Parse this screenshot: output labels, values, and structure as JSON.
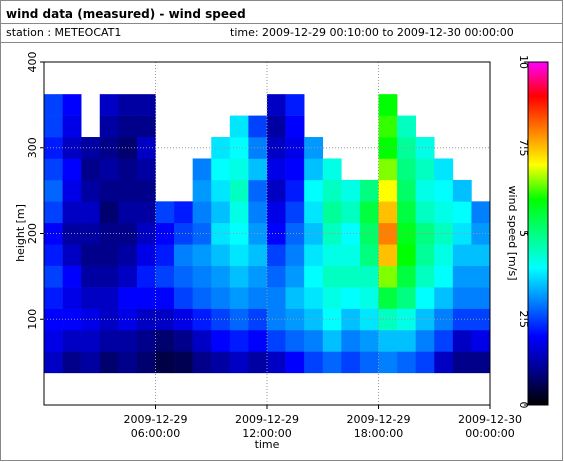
{
  "chart_data": {
    "type": "heatmap",
    "title": "wind data (measured) - wind speed",
    "station": "station : METEOCAT1",
    "period": "time: 2009-12-29 00:10:00 to 2009-12-30 00:00:00",
    "x_label": "time",
    "y_label": "height [m]",
    "colorbar_label": "wind speed [m/s]",
    "x": [
      0.5,
      1.5,
      2.5,
      3.5,
      4.5,
      5.5,
      6.5,
      7.5,
      8.5,
      9.5,
      10.5,
      11.5,
      12.5,
      13.5,
      14.5,
      15.5,
      16.5,
      17.5,
      18.5,
      19.5,
      20.5,
      21.5,
      22.5,
      23.5
    ],
    "y": [
      50,
      75,
      100,
      125,
      150,
      175,
      200,
      225,
      250,
      275,
      300,
      325,
      350
    ],
    "z": [
      [
        1.5,
        1.8,
        2,
        2.2,
        2.5,
        2.2,
        2,
        2.5,
        2.8,
        2.5,
        2.2,
        2.5,
        2.5
      ],
      [
        1,
        1.5,
        2,
        1.8,
        2,
        1.5,
        1.2,
        1.5,
        1.8,
        2,
        1.5,
        1.8,
        2
      ],
      [
        1.2,
        1.5,
        1.8,
        1.5,
        1.2,
        1,
        1.2,
        1.5,
        1.2,
        1,
        1.2,
        null,
        null
      ],
      [
        0.8,
        1.2,
        1.5,
        1.5,
        1.2,
        1,
        1,
        0.8,
        1,
        1.2,
        1,
        1.2,
        1.5
      ],
      [
        1,
        1.2,
        1.8,
        2,
        1.5,
        1.2,
        1,
        1.2,
        1,
        1,
        0.8,
        1,
        1.2
      ],
      [
        0.8,
        1,
        1.5,
        2,
        2.2,
        1.8,
        1.5,
        1.2,
        1,
        1.2,
        1.5,
        1,
        1.2
      ],
      [
        0.5,
        0.8,
        1.5,
        2,
        2.5,
        2.2,
        2,
        2.5,
        null,
        null,
        null,
        null,
        null
      ],
      [
        0.6,
        1,
        1.8,
        2.5,
        2.8,
        3,
        2.5,
        2.2,
        null,
        null,
        null,
        null,
        null
      ],
      [
        1,
        1.5,
        2.2,
        2.8,
        3,
        3.2,
        2.8,
        3,
        3.2,
        3,
        null,
        null,
        null
      ],
      [
        1.2,
        2,
        2.5,
        3,
        3.2,
        3.5,
        3.8,
        3.5,
        3.8,
        4,
        3.8,
        null,
        null
      ],
      [
        1.5,
        2.2,
        2.8,
        3.2,
        3.5,
        3.8,
        4,
        4.2,
        4.5,
        4.2,
        4,
        3.8,
        null
      ],
      [
        1.2,
        2,
        2.5,
        3,
        3.2,
        3.5,
        3.2,
        3,
        2.8,
        3.5,
        3,
        2.5,
        null
      ],
      [
        1.5,
        2.5,
        3,
        3,
        2.8,
        2.5,
        2,
        1.8,
        1.5,
        1.8,
        1.5,
        1.2,
        1.5
      ],
      [
        2,
        2.8,
        3.2,
        3.5,
        3.2,
        3,
        2.8,
        2.5,
        2.2,
        2,
        1.8,
        2,
        2.2
      ],
      [
        2.5,
        3,
        3.5,
        3.8,
        4,
        3.8,
        3.5,
        3.8,
        4,
        3.5,
        3.2,
        null,
        null
      ],
      [
        2.8,
        3.5,
        4,
        4.2,
        4.5,
        4.2,
        4.5,
        4.8,
        4.5,
        4.2,
        null,
        null,
        null
      ],
      [
        2.5,
        3,
        3.5,
        4,
        4.5,
        4.2,
        4,
        4.5,
        4.2,
        null,
        null,
        null,
        null
      ],
      [
        2.8,
        3.2,
        3.8,
        4.2,
        4.5,
        5,
        5.2,
        5.5,
        5,
        null,
        null,
        null,
        null
      ],
      [
        3,
        3.5,
        4.5,
        5.5,
        6.5,
        7.5,
        8,
        7.5,
        7,
        6.5,
        6,
        6.2,
        6
      ],
      [
        2.8,
        3.5,
        4.2,
        5,
        5.5,
        6,
        5.8,
        5.5,
        5.2,
        5,
        4.8,
        4.5,
        null
      ],
      [
        2.5,
        3,
        3.5,
        4,
        4.5,
        4.8,
        5,
        4.5,
        4.2,
        4.5,
        4.2,
        null,
        null
      ],
      [
        1.5,
        2.5,
        3,
        3.5,
        4,
        4.2,
        4.5,
        4.2,
        4,
        3.8,
        null,
        null,
        null
      ],
      [
        1,
        1.5,
        2.5,
        3,
        3.2,
        3.5,
        3.8,
        4,
        3.5,
        null,
        null,
        null,
        null
      ],
      [
        1,
        1.8,
        2.5,
        3,
        3.2,
        3.5,
        3.2,
        3,
        null,
        null,
        null,
        null,
        null
      ]
    ],
    "xlim": [
      0,
      24
    ],
    "xticks": [
      {
        "value": 6,
        "date": "2009-12-29",
        "label": "06:00:00"
      },
      {
        "value": 12,
        "date": "2009-12-29",
        "label": "12:00:00"
      },
      {
        "value": 18,
        "date": "2009-12-29",
        "label": "18:00:00"
      },
      {
        "value": 24,
        "date": "2009-12-30",
        "label": "00:00:00"
      }
    ],
    "ylim": [
      0,
      400
    ],
    "yticks": [
      100,
      200,
      300,
      400
    ],
    "clim": [
      0,
      10
    ],
    "cticks": [
      0,
      2.5,
      5,
      7.5,
      10
    ],
    "colorscale": [
      "#000000",
      "#00008b",
      "#0000ff",
      "#0080ff",
      "#00ffff",
      "#00ff80",
      "#00ff00",
      "#ffff00",
      "#ff8000",
      "#ff0000",
      "#ff00ff"
    ],
    "grid": true
  }
}
